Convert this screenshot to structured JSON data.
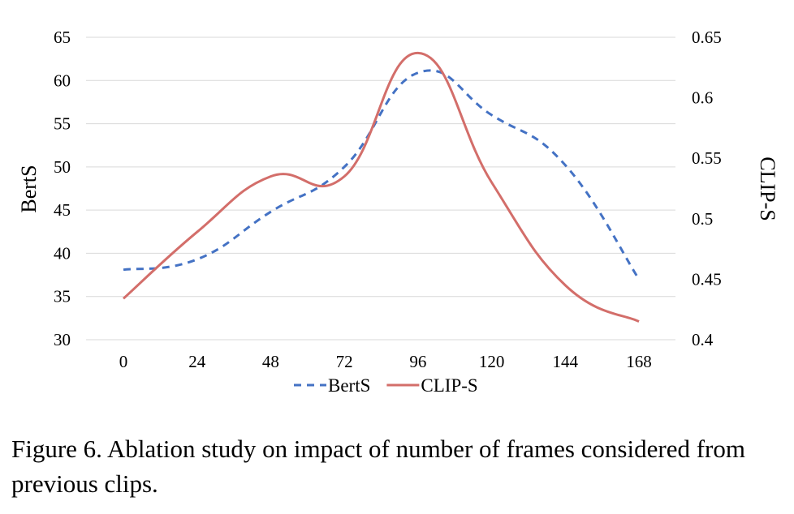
{
  "chart_data": {
    "type": "line",
    "x": [
      0,
      24,
      48,
      72,
      96,
      120,
      144,
      168
    ],
    "xticks": [
      "0",
      "24",
      "48",
      "72",
      "96",
      "120",
      "144",
      "168"
    ],
    "series": [
      {
        "name": "BertS",
        "axis": "left",
        "values": [
          38.1,
          39.3,
          44.8,
          50.0,
          60.9,
          56.0,
          50.2,
          37.0
        ],
        "color": "#4472C4",
        "style": "dashed"
      },
      {
        "name": "CLIP-S",
        "axis": "right",
        "values": [
          0.434,
          0.489,
          0.535,
          0.535,
          0.637,
          0.53,
          0.445,
          0.415
        ],
        "color": "#D36E6A",
        "style": "solid"
      }
    ],
    "ylabel": "BertS",
    "ylabel_right": "CLIP-S",
    "ylim": [
      30,
      65
    ],
    "yticks": [
      "30",
      "35",
      "40",
      "45",
      "50",
      "55",
      "60",
      "65"
    ],
    "ylim_right": [
      0.4,
      0.65
    ],
    "yticks_right": [
      "0.4",
      "0.45",
      "0.5",
      "0.55",
      "0.6",
      "0.65"
    ],
    "grid": true,
    "legend_position": "bottom"
  },
  "caption": "Figure 6. Ablation study on impact of number of frames considered from previous clips."
}
